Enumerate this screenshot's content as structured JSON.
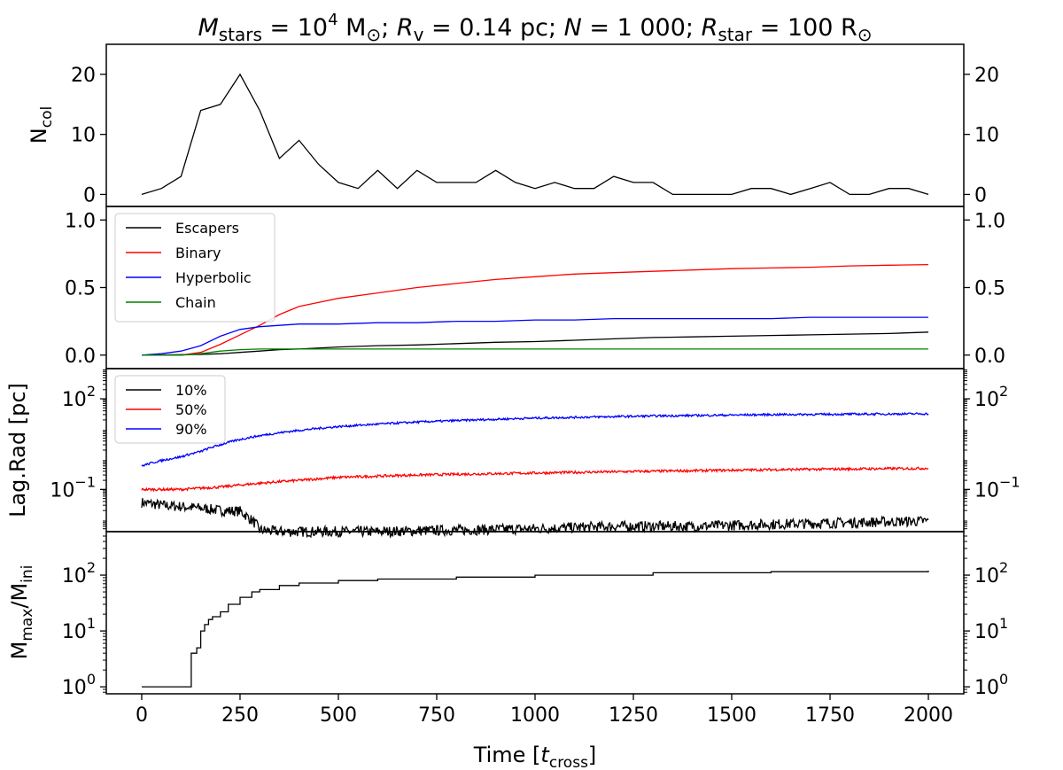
{
  "chart_data": [
    {
      "type": "line",
      "panel": "ncol",
      "title": "M_stars = 10^4 M_sun; R_v = 0.14 pc; N = 1000; R_star = 100 R_sun",
      "title_parts": {
        "m_sym": "M",
        "m_sub": "stars",
        "m_val": " = 10",
        "m_exp": "4",
        "m_unit": " M",
        "r_sym": "R",
        "r_sub": "v",
        "r_val": " = 0.14 pc; ",
        "n_sym": "N",
        "n_val": " = 1 000; ",
        "rs_sym": "R",
        "rs_sub": "star",
        "rs_val": " = 100 R",
        "sep": "; ",
        "sun": "⊙"
      },
      "ylabel": "N",
      "ylabel_sub": "col",
      "ylim": [
        -2,
        25
      ],
      "yticks": [
        0,
        10,
        20
      ],
      "ytick_labels": [
        "0",
        "10",
        "20"
      ],
      "series": [
        {
          "name": "collisions",
          "color": "#000000",
          "x": [
            0,
            50,
            100,
            150,
            200,
            250,
            300,
            350,
            400,
            450,
            500,
            550,
            600,
            650,
            700,
            750,
            800,
            850,
            900,
            950,
            1000,
            1050,
            1100,
            1150,
            1200,
            1250,
            1300,
            1350,
            1400,
            1450,
            1500,
            1550,
            1600,
            1650,
            1700,
            1750,
            1800,
            1850,
            1900,
            1950,
            2000
          ],
          "y": [
            0,
            1,
            3,
            14,
            15,
            20,
            14,
            6,
            9,
            5,
            2,
            1,
            4,
            1,
            4,
            2,
            2,
            2,
            4,
            2,
            1,
            2,
            1,
            1,
            3,
            2,
            2,
            0,
            0,
            0,
            0,
            1,
            1,
            0,
            1,
            2,
            0,
            0,
            1,
            1,
            0
          ]
        }
      ]
    },
    {
      "type": "line",
      "panel": "fractions",
      "ylim": [
        -0.1,
        1.1
      ],
      "yticks": [
        0.0,
        0.5,
        1.0
      ],
      "ytick_labels": [
        "0.0",
        "0.5",
        "1.0"
      ],
      "legend": "top-left",
      "series": [
        {
          "name": "Escapers",
          "color": "#000000",
          "x": [
            0,
            150,
            200,
            250,
            300,
            350,
            400,
            500,
            600,
            700,
            800,
            900,
            1000,
            1100,
            1200,
            1300,
            1400,
            1500,
            1600,
            1700,
            1800,
            1900,
            2000
          ],
          "y": [
            0,
            0.005,
            0.01,
            0.02,
            0.03,
            0.04,
            0.045,
            0.06,
            0.07,
            0.075,
            0.085,
            0.095,
            0.1,
            0.11,
            0.12,
            0.13,
            0.135,
            0.14,
            0.145,
            0.15,
            0.155,
            0.16,
            0.17
          ]
        },
        {
          "name": "Binary",
          "color": "#ff0000",
          "x": [
            0,
            100,
            150,
            200,
            250,
            300,
            350,
            400,
            450,
            500,
            600,
            700,
            800,
            900,
            1000,
            1100,
            1200,
            1300,
            1400,
            1500,
            1600,
            1700,
            1800,
            1900,
            2000
          ],
          "y": [
            0,
            0.0,
            0.02,
            0.08,
            0.15,
            0.22,
            0.3,
            0.36,
            0.39,
            0.42,
            0.46,
            0.5,
            0.53,
            0.56,
            0.58,
            0.6,
            0.61,
            0.62,
            0.63,
            0.64,
            0.645,
            0.65,
            0.66,
            0.665,
            0.67
          ]
        },
        {
          "name": "Hyperbolic",
          "color": "#0000ff",
          "x": [
            0,
            50,
            100,
            150,
            200,
            250,
            300,
            350,
            400,
            500,
            600,
            700,
            800,
            900,
            1000,
            1100,
            1200,
            1300,
            1400,
            1500,
            1600,
            1700,
            1800,
            1900,
            2000
          ],
          "y": [
            0,
            0.01,
            0.03,
            0.07,
            0.14,
            0.19,
            0.21,
            0.22,
            0.23,
            0.23,
            0.24,
            0.24,
            0.25,
            0.25,
            0.26,
            0.26,
            0.27,
            0.27,
            0.27,
            0.27,
            0.27,
            0.28,
            0.28,
            0.28,
            0.28
          ]
        },
        {
          "name": "Chain",
          "color": "#008000",
          "x": [
            0,
            100,
            150,
            200,
            250,
            300,
            400,
            2000
          ],
          "y": [
            0,
            0.0,
            0.01,
            0.03,
            0.04,
            0.045,
            0.045,
            0.045
          ]
        }
      ]
    },
    {
      "type": "line",
      "panel": "lagrangian",
      "ylabel": "Lag.Rad [pc]",
      "yscale": "log",
      "ylim": [
        0.004,
        1000
      ],
      "yticks": [
        0.1,
        100
      ],
      "ytick_mantissa": [
        "10",
        "10"
      ],
      "ytick_exponents": [
        "−1",
        "2"
      ],
      "legend": "top-left",
      "series": [
        {
          "name": "10%",
          "color": "#000000",
          "noise": 0.5,
          "x": [
            0,
            50,
            100,
            150,
            200,
            250,
            270,
            300,
            350,
            400,
            600,
            800,
            1000,
            1200,
            1400,
            1600,
            1800,
            2000
          ],
          "y": [
            0.037,
            0.03,
            0.027,
            0.024,
            0.02,
            0.019,
            0.012,
            0.0045,
            0.004,
            0.004,
            0.004,
            0.0045,
            0.005,
            0.006,
            0.006,
            0.007,
            0.008,
            0.009
          ]
        },
        {
          "name": "50%",
          "color": "#ff0000",
          "noise": 0.12,
          "x": [
            0,
            100,
            200,
            300,
            400,
            500,
            700,
            1000,
            1300,
            1600,
            2000
          ],
          "y": [
            0.1,
            0.1,
            0.12,
            0.16,
            0.2,
            0.25,
            0.3,
            0.35,
            0.4,
            0.45,
            0.5
          ]
        },
        {
          "name": "90%",
          "color": "#0000ff",
          "noise": 0.1,
          "x": [
            0,
            100,
            150,
            200,
            250,
            300,
            400,
            500,
            700,
            1000,
            1300,
            1600,
            2000
          ],
          "y": [
            0.6,
            1.2,
            1.8,
            3.0,
            4.5,
            6.0,
            9.0,
            12.0,
            17.0,
            23.0,
            27.0,
            30.0,
            32.0
          ]
        }
      ]
    },
    {
      "type": "line",
      "panel": "mmax",
      "ylabel": "M",
      "ylabel_sub1": "max",
      "ylabel_mid": "/M",
      "ylabel_sub2": "ini",
      "yscale": "log",
      "ylim": [
        0.75,
        600
      ],
      "yticks": [
        1,
        10,
        100
      ],
      "ytick_mantissa": [
        "10",
        "10",
        "10"
      ],
      "ytick_exponents": [
        "0",
        "1",
        "2"
      ],
      "xlabel_main": "Time [",
      "xlabel_t": "t",
      "xlabel_sub": "cross",
      "xlabel_end": "]",
      "xlim": [
        -90,
        2090
      ],
      "xticks": [
        0,
        250,
        500,
        750,
        1000,
        1250,
        1500,
        1750,
        2000
      ],
      "xtick_labels": [
        "0",
        "250",
        "500",
        "750",
        "1000",
        "1250",
        "1500",
        "1750",
        "2000"
      ],
      "series": [
        {
          "name": "Mmax/Mini",
          "color": "#000000",
          "step": true,
          "x": [
            0,
            125,
            126,
            140,
            150,
            160,
            170,
            180,
            200,
            220,
            250,
            280,
            300,
            350,
            400,
            500,
            600,
            800,
            1000,
            1300,
            1600,
            2000
          ],
          "y": [
            1,
            1,
            4,
            5,
            10,
            13,
            16,
            18,
            22,
            30,
            40,
            50,
            55,
            65,
            72,
            80,
            85,
            92,
            100,
            110,
            115,
            120
          ]
        }
      ]
    }
  ]
}
